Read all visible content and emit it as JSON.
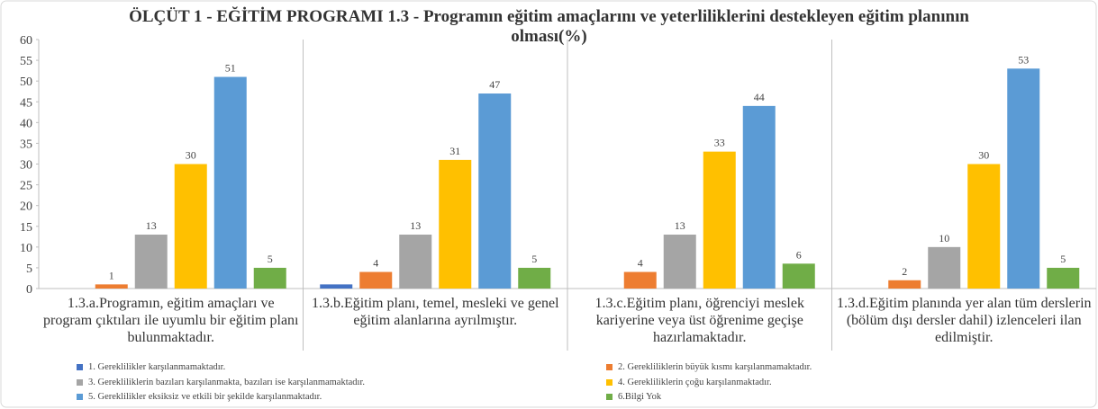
{
  "chart_data": {
    "type": "bar",
    "title": "ÖLÇÜT 1 - EĞİTİM PROGRAMI  1.3 - Programın eğitim amaçlarını ve yeterliliklerini destekleyen eğitim planının olması(%)",
    "categories": [
      "1.3.a.Programın, eğitim amaçları ve program çıktıları ile uyumlu bir eğitim planı bulunmaktadır.",
      "1.3.b.Eğitim planı, temel, mesleki ve genel eğitim alanlarına ayrılmıştır.",
      "1.3.c.Eğitim planı, öğrenciyi meslek kariyerine veya üst öğrenime geçişe hazırlamaktadır.",
      "1.3.d.Eğitim planında yer alan tüm derslerin (bölüm dışı dersler dahil) izlenceleri ilan edilmiştir."
    ],
    "series": [
      {
        "name": "1. Gereklilikler karşılanmamaktadır.",
        "color": "#4472c4",
        "values": [
          null,
          1,
          null,
          null
        ],
        "show_labels": false
      },
      {
        "name": "2. Gerekliliklerin büyük kısmı karşılanmamaktadır.",
        "color": "#ed7d31",
        "values": [
          1,
          4,
          4,
          2
        ]
      },
      {
        "name": "3. Gerekliliklerin bazıları karşılanmakta, bazıları ise karşılanmamaktadır.",
        "color": "#a5a5a5",
        "values": [
          13,
          13,
          13,
          10
        ]
      },
      {
        "name": "4. Gerekliliklerin çoğu karşılanmaktadır.",
        "color": "#ffc000",
        "values": [
          30,
          31,
          33,
          30
        ]
      },
      {
        "name": "5. Gereklilikler eksiksiz ve etkili bir şekilde karşılanmaktadır.",
        "color": "#5b9bd5",
        "values": [
          51,
          47,
          44,
          53
        ]
      },
      {
        "name": "6.Bilgi Yok",
        "color": "#70ad47",
        "values": [
          5,
          5,
          6,
          5
        ]
      }
    ],
    "ylim": [
      0,
      60
    ],
    "yticks": [
      0,
      5,
      10,
      15,
      20,
      25,
      30,
      35,
      40,
      45,
      50,
      55,
      60
    ],
    "grid": false
  }
}
